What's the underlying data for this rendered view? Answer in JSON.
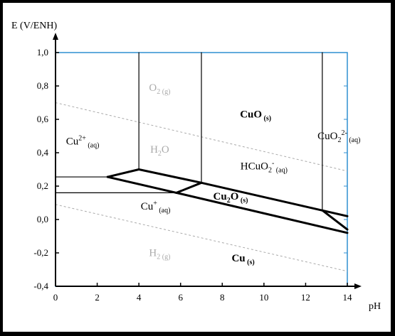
{
  "chart_data": {
    "type": "line",
    "chart_kind": "pourbaix-diagram",
    "ylabel": "E (V/ENH)",
    "xlabel": "pH",
    "xlim": [
      0,
      14
    ],
    "ylim": [
      -0.4,
      1.0
    ],
    "x_ticks": [
      "0",
      "2",
      "4",
      "6",
      "8",
      "10",
      "12",
      "14"
    ],
    "y_ticks": [
      "-0,4",
      "-0,2",
      "0,0",
      "0,2",
      "0,4",
      "0,6",
      "0,8",
      "1,0"
    ],
    "x_tick_values": [
      0,
      2,
      4,
      6,
      8,
      10,
      12,
      14
    ],
    "y_tick_values": [
      -0.4,
      -0.2,
      0.0,
      0.2,
      0.4,
      0.6,
      0.8,
      1.0
    ],
    "colors": {
      "frame": "#2f8fd0",
      "boundary": "#000000",
      "water": "#aaaaaa",
      "label_water": "#aaaaaa"
    },
    "water_lines": [
      {
        "name": "O2/H2O",
        "points": [
          [
            0,
            0.7
          ],
          [
            14,
            0.29
          ]
        ]
      },
      {
        "name": "H2O/H2",
        "points": [
          [
            0,
            0.09
          ],
          [
            14,
            -0.31
          ]
        ]
      }
    ],
    "boundaries": [
      {
        "points": [
          [
            4,
            1.0
          ],
          [
            4,
            0.3
          ]
        ],
        "weight": "thin"
      },
      {
        "points": [
          [
            7,
            1.0
          ],
          [
            7,
            0.22
          ]
        ],
        "weight": "thin"
      },
      {
        "points": [
          [
            12.8,
            1.0
          ],
          [
            12.8,
            0.055
          ]
        ],
        "weight": "thin"
      },
      {
        "points": [
          [
            0,
            0.255
          ],
          [
            2.5,
            0.255
          ]
        ],
        "weight": "thin"
      },
      {
        "points": [
          [
            0,
            0.16
          ],
          [
            5.8,
            0.16
          ]
        ],
        "weight": "thin"
      },
      {
        "points": [
          [
            2.5,
            0.255
          ],
          [
            4,
            0.3
          ]
        ],
        "weight": "thick"
      },
      {
        "points": [
          [
            4,
            0.3
          ],
          [
            7,
            0.22
          ]
        ],
        "weight": "thick"
      },
      {
        "points": [
          [
            2.5,
            0.255
          ],
          [
            5.8,
            0.16
          ]
        ],
        "weight": "thick"
      },
      {
        "points": [
          [
            5.8,
            0.16
          ],
          [
            7,
            0.22
          ]
        ],
        "weight": "thick"
      },
      {
        "points": [
          [
            5.8,
            0.16
          ],
          [
            14,
            -0.08
          ]
        ],
        "weight": "thick"
      },
      {
        "points": [
          [
            7,
            0.22
          ],
          [
            14,
            0.02
          ]
        ],
        "weight": "thick"
      },
      {
        "points": [
          [
            12.8,
            0.055
          ],
          [
            14,
            -0.06
          ]
        ],
        "weight": "thick"
      }
    ],
    "regions": [
      {
        "base": "O",
        "sub": "2 (g)",
        "x": 5.0,
        "y": 0.77,
        "style": "water"
      },
      {
        "base": "H",
        "sub": "2",
        "tail": "O",
        "x": 5.0,
        "y": 0.4,
        "style": "water"
      },
      {
        "base": "H",
        "sub": "2 (g)",
        "x": 5.0,
        "y": -0.22,
        "style": "water"
      },
      {
        "base": "Cu",
        "sup": "2+",
        "sub": " (aq)",
        "x": 1.3,
        "y": 0.45,
        "style": "normal"
      },
      {
        "base": "CuO",
        "sub": " (s)",
        "x": 9.6,
        "y": 0.61,
        "style": "bold"
      },
      {
        "base": "CuO",
        "sub": "2",
        "sup": "2-",
        "sub2": " (aq)",
        "x": 13.6,
        "y": 0.48,
        "style": "normal"
      },
      {
        "base": "HCuO",
        "sub": "2",
        "sup": "-",
        "sub2": " (aq)",
        "x": 10.0,
        "y": 0.3,
        "style": "normal"
      },
      {
        "base": "Cu",
        "sub": "2",
        "tail": "O",
        "tailsub": " (s)",
        "x": 8.4,
        "y": 0.12,
        "style": "bold"
      },
      {
        "base": "Cu",
        "sup": "+",
        "sub": " (aq)",
        "x": 4.8,
        "y": 0.06,
        "style": "normal"
      },
      {
        "base": "Cu",
        "sub": " (s)",
        "x": 9.0,
        "y": -0.25,
        "style": "bold"
      }
    ]
  }
}
